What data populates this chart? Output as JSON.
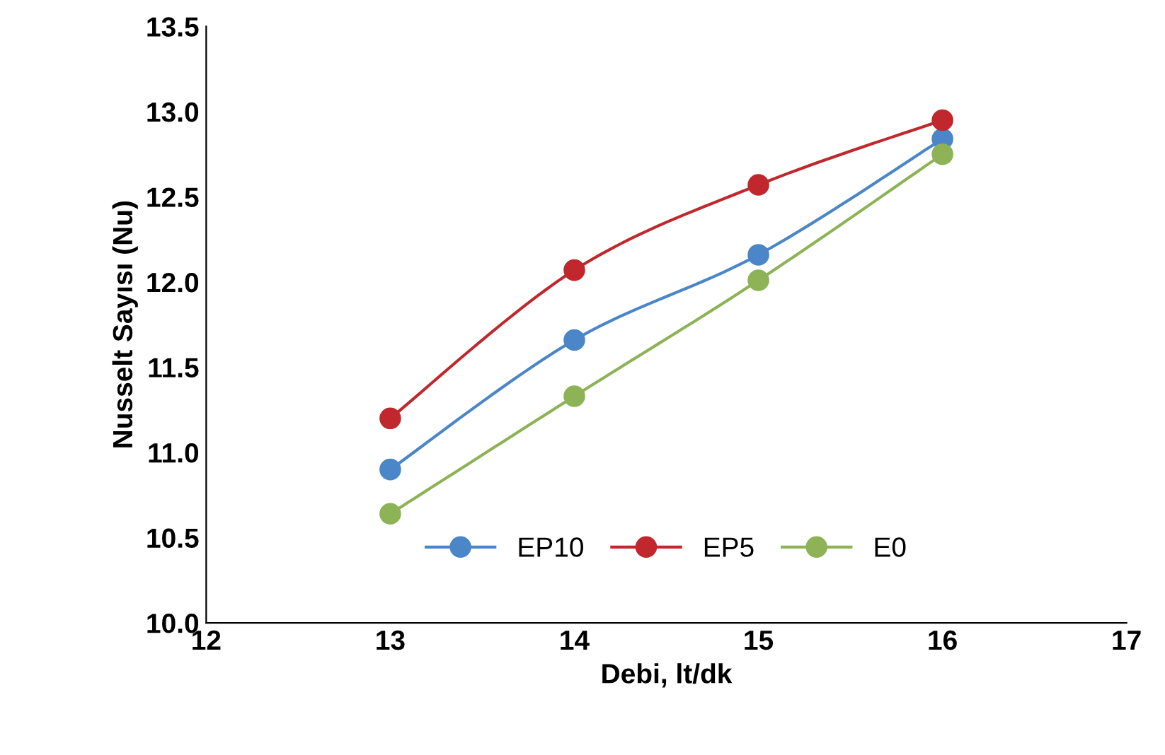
{
  "chart_data": {
    "type": "line",
    "xlabel": "Debi, lt/dk",
    "ylabel": "Nusselt Sayısı (Nu)",
    "x": [
      13,
      14,
      15,
      16
    ],
    "series": [
      {
        "name": "EP10",
        "color": "#4a86c8",
        "values": [
          10.9,
          11.66,
          12.16,
          12.84
        ]
      },
      {
        "name": "EP5",
        "color": "#c0282d",
        "values": [
          11.2,
          12.07,
          12.57,
          12.95
        ]
      },
      {
        "name": "E0",
        "color": "#8db356",
        "values": [
          10.64,
          11.33,
          12.01,
          12.75
        ]
      }
    ],
    "xlim": [
      12,
      17
    ],
    "xticks": [
      12,
      13,
      14,
      15,
      16,
      17
    ],
    "ylim": [
      10.0,
      13.5
    ],
    "yticks": [
      {
        "value": 10.0,
        "label": "10.0"
      },
      {
        "value": 10.5,
        "label": "10.5"
      },
      {
        "value": 11.0,
        "label": "11.0"
      },
      {
        "value": 11.5,
        "label": "11.5"
      },
      {
        "value": 12.0,
        "label": "12.0"
      },
      {
        "value": 12.5,
        "label": "12.5"
      },
      {
        "value": 13.0,
        "label": "13.0"
      },
      {
        "value": 13.5,
        "label": "13.5"
      }
    ],
    "grid": false,
    "legend": "bottom",
    "marker": "circle",
    "line_style": "solid"
  }
}
